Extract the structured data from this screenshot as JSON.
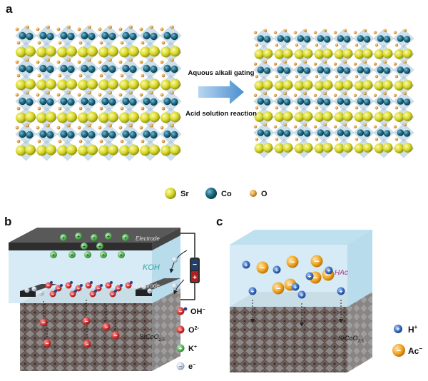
{
  "panel_a": {
    "label": "a",
    "arrow_top": "Aquous alkali gating",
    "arrow_bottom": "Acid solution reaction",
    "legend": [
      {
        "symbol": "Sr",
        "color": "#d8d82a",
        "icon": "yellow-sphere"
      },
      {
        "symbol": "Co",
        "color": "#1f6f8a",
        "icon": "teal-sphere"
      },
      {
        "symbol": "O",
        "color": "#e09a3a",
        "icon": "orange-sphere"
      }
    ]
  },
  "panel_b": {
    "label": "b",
    "electrode_top": "Electrode",
    "electrode_bottom": "Electrode",
    "electrolyte": "KOH",
    "substrate": "SrCoO",
    "substrate_sub": "2.5",
    "battery_minus": "−",
    "battery_plus": "+",
    "legend": [
      {
        "glyph": "−",
        "text": "OH",
        "sup": "−",
        "color": "#d93a3a",
        "icon": "hydroxide-icon"
      },
      {
        "glyph": "−",
        "text": "O",
        "sup": "2-",
        "color": "#d93a3a",
        "icon": "oxide-icon"
      },
      {
        "glyph": "+",
        "text": "K",
        "sup": "+",
        "color": "#5cb85c",
        "icon": "potassium-icon"
      },
      {
        "glyph": "−",
        "text": "e",
        "sup": "−",
        "color": "#a7b6cc",
        "icon": "electron-icon"
      }
    ]
  },
  "panel_c": {
    "label": "c",
    "electrolyte": "HAc",
    "substrate": "SrCoO",
    "substrate_sub": "2.5",
    "legend": [
      {
        "glyph": "+",
        "text": "H",
        "sup": "+",
        "color": "#3a6fc4",
        "icon": "proton-icon"
      },
      {
        "glyph": "−",
        "text": "Ac",
        "sup": "−",
        "color": "#f2a623",
        "icon": "acetate-icon"
      }
    ]
  },
  "colors": {
    "crystal_blue": "#a9c8dc",
    "electrolyte_blue": "#cfe8f3",
    "substrate_gray": "#8f8f8f",
    "electrode_dark": "#3a3a3a",
    "arrow_blue": "#5b9bd5"
  }
}
